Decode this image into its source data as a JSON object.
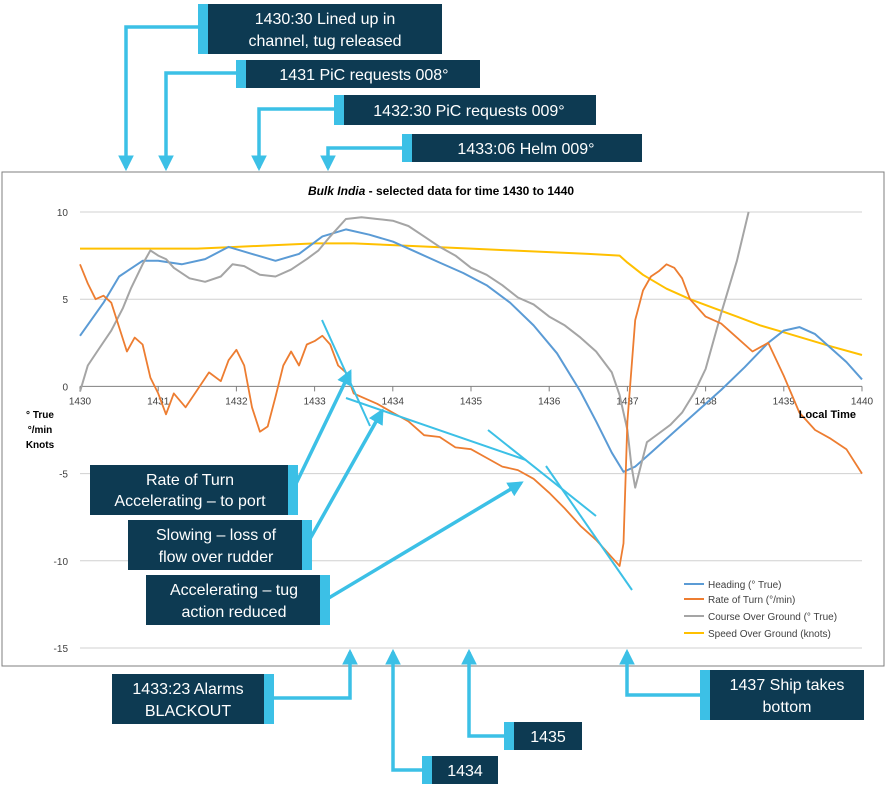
{
  "colors": {
    "callout_bg": "#0d3a52",
    "callout_accent": "#3cc0e6",
    "arrow": "#3cc0e6",
    "heading": "#5b9bd5",
    "rate_of_turn": "#ed7d31",
    "course_over_ground": "#a5a5a5",
    "speed_over_ground": "#ffc000",
    "grid": "#d0d0d0",
    "axis_text": "#404040"
  },
  "callouts": {
    "top1": [
      "1430:30 Lined up in",
      "channel, tug released"
    ],
    "top2": [
      "1431 PiC requests 008°"
    ],
    "top3": [
      "1432:30 PiC requests 009°"
    ],
    "top4": [
      "1433:06 Helm 009°"
    ],
    "mid1": [
      "Rate of Turn",
      "Accelerating – to port"
    ],
    "mid2": [
      "Slowing – loss of",
      "flow over rudder"
    ],
    "mid3": [
      "Accelerating – tug",
      "action reduced"
    ],
    "bot1": [
      "1433:23 Alarms",
      "BLACKOUT"
    ],
    "bot2": [
      "1434"
    ],
    "bot3": [
      "1435"
    ],
    "bot4": [
      "1437 Ship takes",
      "bottom"
    ]
  },
  "chart_data": {
    "type": "line",
    "title_prefix": "Bulk India",
    "title_suffix": " - selected data for time 1430 to 1440",
    "xlabel": "Local Time",
    "ylabel_lines": [
      "° True",
      "°/min",
      "Knots"
    ],
    "ylim": [
      -15,
      10
    ],
    "xlim": [
      1430,
      1440
    ],
    "grid": true,
    "legend_position": "bottom-right",
    "x_ticks": [
      "1430",
      "1431",
      "1432",
      "1433",
      "1434",
      "1435",
      "1436",
      "1437",
      "1438",
      "1439",
      "1440"
    ],
    "y_ticks": [
      "10",
      "5",
      "0",
      "-5",
      "-10",
      "-15"
    ],
    "x_tick_values": [
      1430,
      1431,
      1432,
      1433,
      1434,
      1435,
      1436,
      1437,
      1438,
      1439,
      1440
    ],
    "y_tick_values": [
      10,
      5,
      0,
      -5,
      -10,
      -15
    ],
    "series": [
      {
        "name": "Heading (° True)",
        "x": [
          1430,
          1430.3,
          1430.5,
          1430.8,
          1431,
          1431.3,
          1431.6,
          1431.9,
          1432.2,
          1432.5,
          1432.8,
          1433.1,
          1433.4,
          1433.7,
          1434,
          1434.3,
          1434.6,
          1434.9,
          1435.2,
          1435.5,
          1435.8,
          1436.1,
          1436.4,
          1436.6,
          1436.8,
          1436.95,
          1437.1,
          1437.3,
          1437.6,
          1437.9,
          1438.2,
          1438.5,
          1438.8,
          1439,
          1439.2,
          1439.4,
          1439.6,
          1439.8,
          1440
        ],
        "values": [
          2.9,
          4.8,
          6.3,
          7.2,
          7.2,
          7.0,
          7.3,
          8.0,
          7.6,
          7.2,
          7.6,
          8.6,
          9.0,
          8.7,
          8.3,
          7.7,
          7.1,
          6.5,
          5.8,
          4.8,
          3.5,
          1.9,
          -0.3,
          -2.0,
          -3.8,
          -4.9,
          -4.6,
          -3.8,
          -2.6,
          -1.4,
          -0.2,
          1.1,
          2.5,
          3.2,
          3.4,
          3.0,
          2.2,
          1.4,
          0.4
        ]
      },
      {
        "name": "Rate of Turn (°/min)",
        "x": [
          1430,
          1430.1,
          1430.2,
          1430.3,
          1430.4,
          1430.5,
          1430.6,
          1430.7,
          1430.8,
          1430.9,
          1431,
          1431.1,
          1431.2,
          1431.35,
          1431.5,
          1431.65,
          1431.8,
          1431.9,
          1432,
          1432.1,
          1432.2,
          1432.3,
          1432.4,
          1432.5,
          1432.6,
          1432.7,
          1432.8,
          1432.9,
          1433,
          1433.1,
          1433.2,
          1433.3,
          1433.4,
          1433.5,
          1433.6,
          1433.8,
          1434,
          1434.2,
          1434.4,
          1434.6,
          1434.8,
          1435,
          1435.2,
          1435.4,
          1435.6,
          1435.8,
          1436,
          1436.2,
          1436.4,
          1436.6,
          1436.8,
          1436.9,
          1436.95,
          1437,
          1437.1,
          1437.2,
          1437.3,
          1437.4,
          1437.5,
          1437.6,
          1437.7,
          1437.8,
          1438,
          1438.2,
          1438.4,
          1438.6,
          1438.8,
          1439,
          1439.2,
          1439.4,
          1439.6,
          1439.8,
          1440
        ],
        "values": [
          7.0,
          5.9,
          5.0,
          5.2,
          4.8,
          3.4,
          2.0,
          2.8,
          2.4,
          0.5,
          -0.4,
          -1.6,
          -0.4,
          -1.2,
          -0.2,
          0.8,
          0.3,
          1.5,
          2.1,
          1.2,
          -1.2,
          -2.6,
          -2.3,
          -0.6,
          1.2,
          2.0,
          1.2,
          2.4,
          2.6,
          2.9,
          2.4,
          1.2,
          0.8,
          -0.4,
          -0.6,
          -1.0,
          -1.5,
          -2.0,
          -2.8,
          -2.9,
          -3.5,
          -3.6,
          -4.1,
          -4.6,
          -4.8,
          -5.3,
          -6.1,
          -7.0,
          -8.0,
          -8.8,
          -9.8,
          -10.3,
          -9.0,
          -2.0,
          3.8,
          5.5,
          6.3,
          6.6,
          7.0,
          6.8,
          6.2,
          5.0,
          4.0,
          3.6,
          2.8,
          2.0,
          2.5,
          0.6,
          -1.5,
          -2.5,
          -3.0,
          -3.6,
          -5.0
        ]
      },
      {
        "name": "Course Over Ground (° True)",
        "x": [
          1430,
          1430.1,
          1430.25,
          1430.4,
          1430.55,
          1430.65,
          1430.8,
          1430.9,
          1431,
          1431.1,
          1431.2,
          1431.4,
          1431.6,
          1431.8,
          1431.95,
          1432.1,
          1432.3,
          1432.5,
          1432.7,
          1432.9,
          1433.05,
          1433.2,
          1433.4,
          1433.6,
          1433.8,
          1434.0,
          1434.2,
          1434.4,
          1434.6,
          1434.8,
          1435.0,
          1435.2,
          1435.4,
          1435.6,
          1435.8,
          1436.0,
          1436.2,
          1436.4,
          1436.6,
          1436.8,
          1436.9,
          1437.0,
          1437.05,
          1437.1,
          1437.25,
          1437.4,
          1437.55,
          1437.7,
          1437.85,
          1438.0,
          1438.2,
          1438.4,
          1438.55
        ],
        "values": [
          -0.3,
          1.2,
          2.2,
          3.2,
          4.5,
          5.6,
          7.0,
          7.8,
          7.5,
          7.3,
          6.8,
          6.2,
          6.0,
          6.3,
          7.0,
          6.9,
          6.4,
          6.3,
          6.7,
          7.3,
          7.8,
          8.6,
          9.6,
          9.7,
          9.6,
          9.5,
          9.2,
          8.6,
          8.0,
          7.5,
          6.8,
          6.4,
          5.8,
          5.1,
          4.7,
          4.0,
          3.5,
          2.8,
          2.0,
          0.8,
          -0.5,
          -2.5,
          -4.5,
          -5.8,
          -3.2,
          -2.7,
          -2.2,
          -1.5,
          -0.4,
          1.0,
          4.2,
          7.2,
          10.0
        ]
      },
      {
        "name": "Speed Over Ground (knots)",
        "x": [
          1430,
          1430.5,
          1431,
          1431.5,
          1432,
          1432.5,
          1433,
          1433.5,
          1434,
          1434.5,
          1435,
          1435.5,
          1436,
          1436.5,
          1436.9,
          1437.0,
          1437.2,
          1437.5,
          1437.8,
          1438.1,
          1438.4,
          1438.7,
          1439,
          1439.3,
          1439.6,
          1440
        ],
        "values": [
          7.9,
          7.9,
          7.9,
          7.9,
          8.0,
          8.1,
          8.2,
          8.2,
          8.1,
          8.0,
          7.9,
          7.8,
          7.7,
          7.6,
          7.5,
          7.1,
          6.4,
          5.6,
          5.0,
          4.5,
          4.0,
          3.5,
          3.1,
          2.7,
          2.3,
          1.8
        ]
      }
    ]
  }
}
